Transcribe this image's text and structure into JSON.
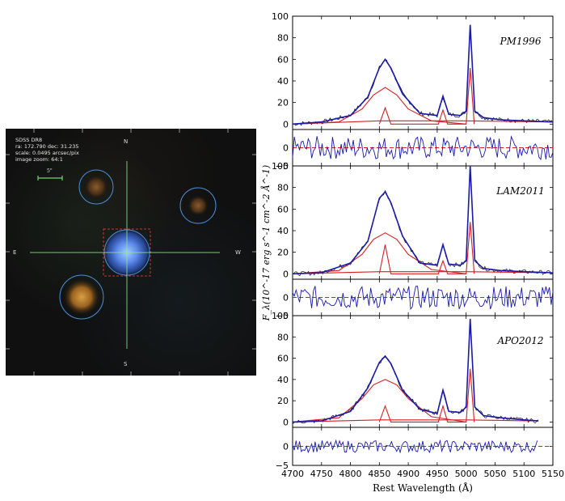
{
  "sdss_image": {
    "header_lines": [
      "SDSS DR8",
      "ra: 172.790 dec: 31.235",
      "scale: 0.0495 arcsec/pix",
      "image zoom: 64:1"
    ],
    "scale_bar_label": "5\"",
    "compass": {
      "north": "N",
      "south": "S",
      "east": "E",
      "west": "W"
    },
    "colors": {
      "circle": "#4a8fd8",
      "crosshair": "#8fe08f",
      "box": "#cc3333",
      "scale_bar": "#6dd66d"
    }
  },
  "chart_data": [
    {
      "type": "line",
      "panel": "spectrum",
      "label": "PM1996",
      "ylim": [
        -5,
        100
      ],
      "yticks": [
        0,
        20,
        40,
        60,
        80,
        100
      ],
      "xlim": [
        4700,
        5150
      ],
      "series": [
        {
          "role": "model",
          "color": "#1a1aaa",
          "x": [
            4700,
            4750,
            4800,
            4830,
            4850,
            4860,
            4870,
            4890,
            4920,
            4950,
            4960,
            4970,
            4990,
            5000,
            5007,
            5015,
            5030,
            5060,
            5100,
            5150
          ],
          "y": [
            0,
            2,
            8,
            25,
            52,
            60,
            52,
            28,
            10,
            8,
            26,
            9,
            8,
            12,
            92,
            12,
            6,
            4,
            3,
            2
          ]
        },
        {
          "role": "broad-component",
          "color": "#d42020",
          "x": [
            4700,
            4780,
            4820,
            4840,
            4860,
            4880,
            4900,
            4940,
            5000
          ],
          "y": [
            0,
            2,
            14,
            27,
            34,
            27,
            14,
            3,
            0
          ]
        },
        {
          "role": "narrow-components",
          "color": "#d42020",
          "x": [
            4850,
            4860,
            4870,
            4952,
            4960,
            4968,
            5000,
            5007,
            5014
          ],
          "y": [
            0,
            15,
            0,
            0,
            13,
            0,
            0,
            52,
            0
          ]
        },
        {
          "role": "continuum",
          "color": "#d42020",
          "x": [
            4700,
            4850,
            5000,
            5150
          ],
          "y": [
            0,
            3,
            3,
            2
          ]
        }
      ]
    },
    {
      "type": "line",
      "panel": "residual",
      "ylim": [
        -5,
        5
      ],
      "yticks": [
        -5,
        0
      ],
      "xlim": [
        4700,
        5150
      ],
      "series": [
        {
          "role": "residual",
          "color": "#1a1aaa"
        }
      ]
    },
    {
      "type": "line",
      "panel": "spectrum",
      "label": "LAM2011",
      "ylim": [
        -5,
        100
      ],
      "yticks": [
        0,
        20,
        40,
        60,
        80,
        100
      ],
      "xlim": [
        4700,
        5150
      ],
      "series": [
        {
          "role": "model",
          "color": "#1a1aaa",
          "x": [
            4700,
            4750,
            4800,
            4830,
            4850,
            4860,
            4870,
            4890,
            4920,
            4950,
            4960,
            4970,
            4990,
            5000,
            5007,
            5015,
            5030,
            5060,
            5100,
            5150
          ],
          "y": [
            0,
            1,
            10,
            30,
            70,
            76,
            66,
            35,
            10,
            8,
            27,
            9,
            8,
            12,
            100,
            12,
            5,
            3,
            2,
            1
          ]
        },
        {
          "role": "broad-component",
          "color": "#d42020",
          "x": [
            4700,
            4780,
            4820,
            4840,
            4860,
            4880,
            4900,
            4940,
            5000
          ],
          "y": [
            0,
            3,
            18,
            32,
            38,
            32,
            18,
            4,
            0
          ]
        },
        {
          "role": "narrow-components",
          "color": "#d42020",
          "x": [
            4850,
            4860,
            4870,
            4952,
            4960,
            4968,
            5000,
            5007,
            5014
          ],
          "y": [
            0,
            27,
            0,
            0,
            12,
            0,
            0,
            48,
            0
          ]
        },
        {
          "role": "continuum",
          "color": "#d42020",
          "x": [
            4700,
            4850,
            5000,
            5150
          ],
          "y": [
            0,
            2,
            2,
            1
          ]
        }
      ]
    },
    {
      "type": "line",
      "panel": "residual",
      "ylim": [
        -5,
        5
      ],
      "yticks": [
        -5,
        0
      ],
      "xlim": [
        4700,
        5150
      ],
      "series": [
        {
          "role": "residual",
          "color": "#1a1aaa"
        }
      ]
    },
    {
      "type": "line",
      "panel": "spectrum",
      "label": "APO2012",
      "ylim": [
        -5,
        100
      ],
      "yticks": [
        0,
        20,
        40,
        60,
        80,
        100
      ],
      "xlim": [
        4700,
        5150
      ],
      "series": [
        {
          "role": "model",
          "color": "#1a1aaa",
          "x": [
            4700,
            4750,
            4800,
            4830,
            4850,
            4860,
            4870,
            4890,
            4920,
            4950,
            4960,
            4970,
            4990,
            5000,
            5007,
            5015,
            5030,
            5060,
            5100,
            5125
          ],
          "y": [
            0,
            1,
            10,
            32,
            56,
            62,
            55,
            30,
            12,
            8,
            30,
            10,
            9,
            14,
            97,
            14,
            6,
            4,
            2,
            1
          ]
        },
        {
          "role": "broad-component",
          "color": "#d42020",
          "x": [
            4700,
            4780,
            4820,
            4840,
            4860,
            4880,
            4900,
            4940,
            5000
          ],
          "y": [
            0,
            4,
            22,
            35,
            40,
            35,
            22,
            5,
            0
          ]
        },
        {
          "role": "narrow-components",
          "color": "#d42020",
          "x": [
            4850,
            4860,
            4870,
            4952,
            4960,
            4968,
            5000,
            5007,
            5014
          ],
          "y": [
            0,
            15,
            0,
            0,
            15,
            0,
            0,
            50,
            0
          ]
        },
        {
          "role": "continuum",
          "color": "#d42020",
          "x": [
            4700,
            4850,
            5000,
            5125
          ],
          "y": [
            0,
            2,
            2,
            1
          ]
        }
      ]
    },
    {
      "type": "line",
      "panel": "residual",
      "ylim": [
        -5,
        5
      ],
      "yticks": [
        -5,
        0
      ],
      "xlim": [
        4700,
        5150
      ],
      "series": [
        {
          "role": "residual",
          "color": "#1a1aaa"
        }
      ]
    }
  ],
  "axes": {
    "ylabel": "F_λ(10^-17 erg s^-1 cm^-2 Å^-1)",
    "xlabel": "Rest Wavelength (Å)",
    "xticks": [
      4700,
      4750,
      4800,
      4850,
      4900,
      4950,
      5000,
      5050,
      5100,
      5150
    ]
  }
}
